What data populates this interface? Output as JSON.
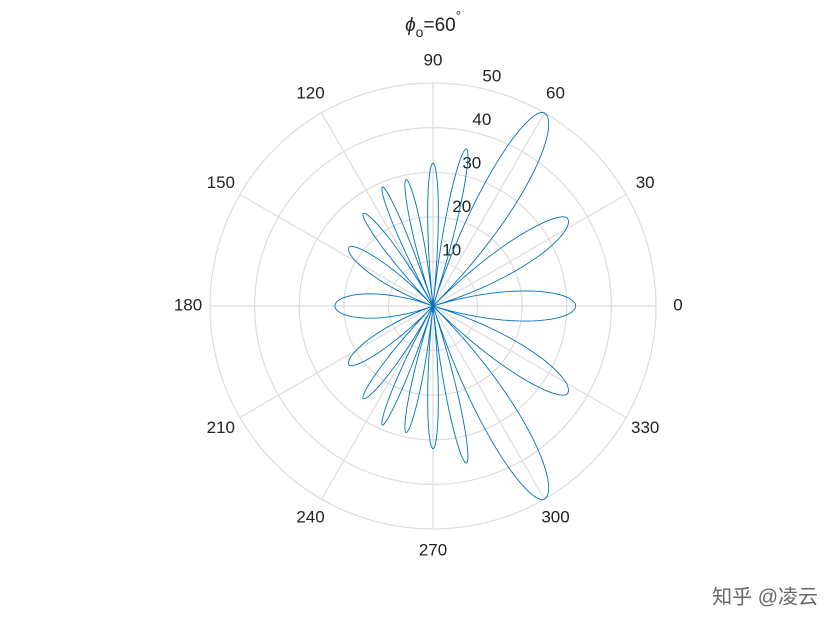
{
  "chart_data": {
    "type": "polar",
    "title": {
      "symbol": "ϕ",
      "subscript": "o",
      "text": "=60",
      "superscript": "°"
    },
    "thetaticks": [
      0,
      30,
      60,
      90,
      120,
      150,
      180,
      210,
      240,
      270,
      300,
      330
    ],
    "rlim": [
      0,
      50
    ],
    "rticks": [
      10,
      20,
      30,
      40,
      50
    ],
    "grid": true,
    "series": [
      {
        "color": "#0072bd",
        "theta": [
          0,
          17,
          33,
          45,
          60,
          72,
          78,
          84,
          90,
          96,
          102,
          108,
          113,
          119,
          127,
          134,
          145,
          160,
          180,
          200,
          215,
          226,
          233,
          241,
          247,
          252,
          258,
          264,
          270,
          276,
          282,
          288,
          300,
          315,
          327,
          343,
          360
        ],
        "values": [
          32,
          0,
          36,
          0,
          50,
          0,
          36,
          0,
          32,
          0,
          29,
          0,
          29,
          0,
          26,
          0,
          23,
          0,
          22,
          0,
          23,
          0,
          26,
          0,
          29,
          0,
          29,
          0,
          32,
          0,
          36,
          0,
          50,
          0,
          36,
          0,
          32
        ]
      }
    ],
    "watermark": "知乎 @凌云"
  }
}
